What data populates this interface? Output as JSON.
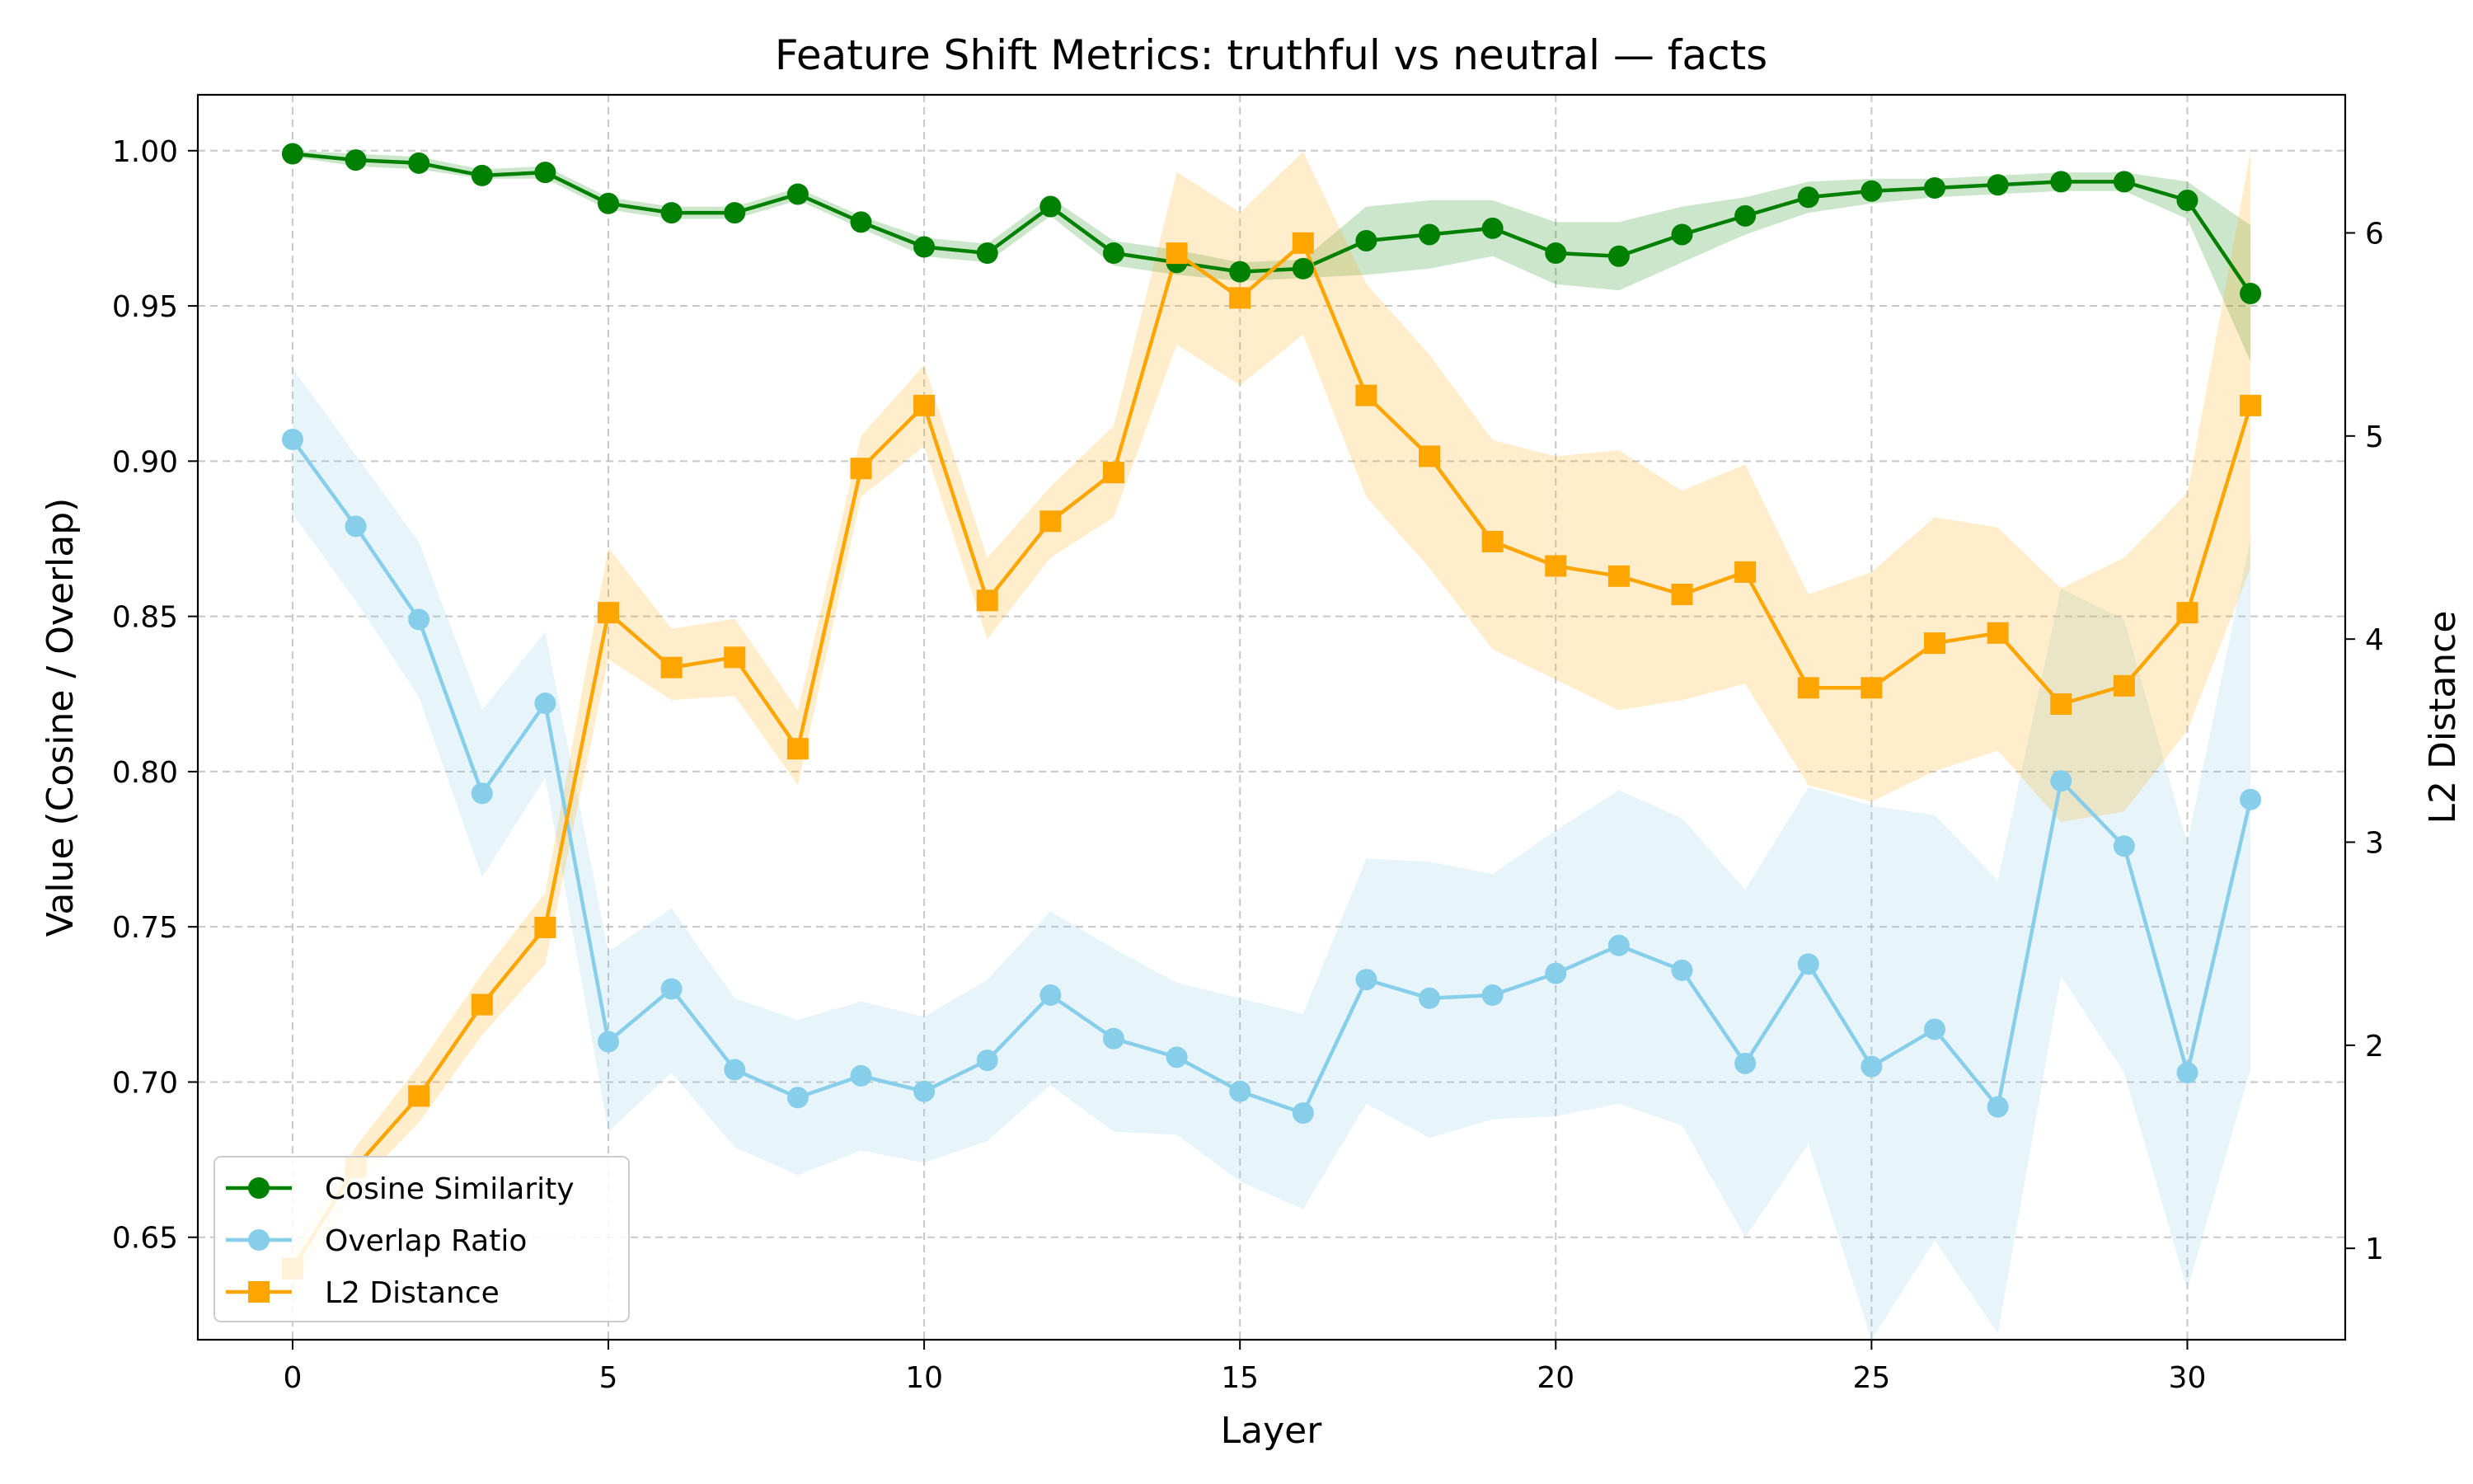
{
  "chart_data": {
    "type": "line",
    "title": "Feature Shift Metrics: truthful vs neutral — facts",
    "xlabel": "Layer",
    "ylabel": "Value (Cosine / Overlap)",
    "y2label": "L2 Distance",
    "xlim": [
      -1.5,
      32.5
    ],
    "ylim": [
      0.617,
      1.018
    ],
    "y2lim": [
      0.55,
      6.68
    ],
    "xticks": [
      "0",
      "5",
      "10",
      "15",
      "20",
      "25",
      "30"
    ],
    "yticks": [
      "0.65",
      "0.70",
      "0.75",
      "0.80",
      "0.85",
      "0.90",
      "0.95",
      "1.00"
    ],
    "y2ticks": [
      "1",
      "2",
      "3",
      "4",
      "5",
      "6"
    ],
    "grid": true,
    "legend_position": "lower-left",
    "x": [
      0,
      1,
      2,
      3,
      4,
      5,
      6,
      7,
      8,
      9,
      10,
      11,
      12,
      13,
      14,
      15,
      16,
      17,
      18,
      19,
      20,
      21,
      22,
      23,
      24,
      25,
      26,
      27,
      28,
      29,
      30,
      31
    ],
    "series": [
      {
        "name": "Cosine Similarity",
        "axis": "left",
        "marker": "circle",
        "color": "#008000",
        "band_color": "#008000",
        "values": [
          0.999,
          0.997,
          0.996,
          0.992,
          0.993,
          0.983,
          0.98,
          0.98,
          0.986,
          0.977,
          0.969,
          0.967,
          0.982,
          0.967,
          0.964,
          0.961,
          0.962,
          0.971,
          0.973,
          0.975,
          0.967,
          0.966,
          0.973,
          0.979,
          0.985,
          0.987,
          0.988,
          0.989,
          0.99,
          0.99,
          0.984,
          0.954
        ],
        "lower": [
          0.998,
          0.995,
          0.994,
          0.991,
          0.991,
          0.981,
          0.978,
          0.978,
          0.984,
          0.975,
          0.966,
          0.964,
          0.979,
          0.963,
          0.96,
          0.958,
          0.959,
          0.96,
          0.962,
          0.966,
          0.957,
          0.955,
          0.964,
          0.973,
          0.98,
          0.983,
          0.985,
          0.986,
          0.987,
          0.987,
          0.978,
          0.932
        ],
        "upper": [
          1.0,
          0.999,
          0.998,
          0.994,
          0.995,
          0.985,
          0.982,
          0.982,
          0.988,
          0.979,
          0.972,
          0.97,
          0.985,
          0.971,
          0.968,
          0.964,
          0.965,
          0.982,
          0.984,
          0.984,
          0.977,
          0.977,
          0.982,
          0.985,
          0.99,
          0.991,
          0.991,
          0.992,
          0.993,
          0.993,
          0.99,
          0.976
        ]
      },
      {
        "name": "Overlap Ratio",
        "axis": "left",
        "marker": "circle",
        "color": "#87CEEB",
        "band_color": "#87CEEB",
        "values": [
          0.907,
          0.879,
          0.849,
          0.793,
          0.822,
          0.713,
          0.73,
          0.704,
          0.695,
          0.702,
          0.697,
          0.707,
          0.728,
          0.714,
          0.708,
          0.697,
          0.69,
          0.733,
          0.727,
          0.728,
          0.735,
          0.744,
          0.736,
          0.706,
          0.738,
          0.705,
          0.717,
          0.692,
          0.797,
          0.776,
          0.703,
          0.791
        ],
        "lower": [
          0.883,
          0.855,
          0.824,
          0.766,
          0.798,
          0.684,
          0.703,
          0.679,
          0.67,
          0.678,
          0.674,
          0.681,
          0.699,
          0.684,
          0.683,
          0.668,
          0.659,
          0.693,
          0.682,
          0.688,
          0.689,
          0.693,
          0.686,
          0.65,
          0.68,
          0.617,
          0.649,
          0.619,
          0.734,
          0.703,
          0.633,
          0.704
        ],
        "upper": [
          0.93,
          0.902,
          0.874,
          0.82,
          0.845,
          0.742,
          0.756,
          0.727,
          0.72,
          0.726,
          0.721,
          0.733,
          0.755,
          0.743,
          0.732,
          0.727,
          0.722,
          0.772,
          0.771,
          0.767,
          0.781,
          0.794,
          0.785,
          0.762,
          0.795,
          0.789,
          0.786,
          0.765,
          0.859,
          0.849,
          0.777,
          0.875
        ]
      },
      {
        "name": "L2 Distance",
        "axis": "right",
        "marker": "square",
        "color": "#FFA500",
        "band_color": "#FFA500",
        "values": [
          0.9,
          1.4,
          1.75,
          2.2,
          2.58,
          4.13,
          3.86,
          3.91,
          3.46,
          4.84,
          5.15,
          4.19,
          4.58,
          4.82,
          5.9,
          5.68,
          5.95,
          5.2,
          4.9,
          4.48,
          4.36,
          4.31,
          4.22,
          4.33,
          3.76,
          3.76,
          3.98,
          4.03,
          3.68,
          3.77,
          4.13,
          5.15
        ],
        "lower": [
          0.8,
          1.3,
          1.62,
          2.05,
          2.4,
          3.9,
          3.7,
          3.72,
          3.28,
          4.7,
          4.95,
          4.0,
          4.4,
          4.6,
          5.45,
          5.25,
          5.5,
          4.7,
          4.35,
          3.95,
          3.8,
          3.65,
          3.7,
          3.78,
          3.28,
          3.2,
          3.35,
          3.45,
          3.1,
          3.15,
          3.55,
          4.35
        ],
        "upper": [
          1.0,
          1.5,
          1.9,
          2.35,
          2.75,
          4.45,
          4.05,
          4.1,
          3.65,
          5.0,
          5.35,
          4.4,
          4.75,
          5.05,
          6.3,
          6.1,
          6.4,
          5.75,
          5.4,
          4.98,
          4.9,
          4.93,
          4.73,
          4.86,
          4.22,
          4.33,
          4.6,
          4.55,
          4.25,
          4.4,
          4.72,
          6.4
        ]
      }
    ]
  }
}
